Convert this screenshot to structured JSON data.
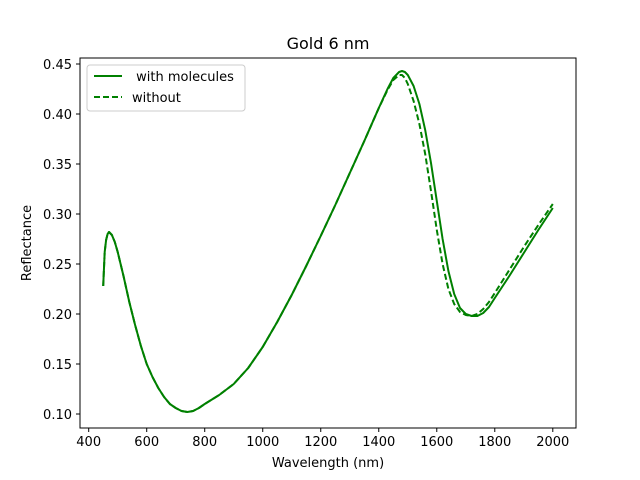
{
  "chart_data": {
    "type": "line",
    "title": "Gold 6 nm",
    "xlabel": "Wavelength (nm)",
    "ylabel": "Reflectance",
    "xlim": [
      370,
      2080
    ],
    "ylim": [
      0.086,
      0.456
    ],
    "xticks": [
      400,
      600,
      800,
      1000,
      1200,
      1400,
      1600,
      1800,
      2000
    ],
    "yticks": [
      0.1,
      0.15,
      0.2,
      0.25,
      0.3,
      0.35,
      0.4,
      0.45
    ],
    "grid": false,
    "legend_position": "top-left",
    "series": [
      {
        "name": " with molecules",
        "style": "solid",
        "color": "#008000",
        "x": [
          450,
          455,
          460,
          465,
          470,
          480,
          490,
          500,
          520,
          540,
          560,
          580,
          600,
          620,
          640,
          660,
          680,
          700,
          720,
          740,
          760,
          780,
          800,
          850,
          900,
          950,
          1000,
          1050,
          1100,
          1150,
          1200,
          1250,
          1300,
          1350,
          1400,
          1430,
          1450,
          1470,
          1480,
          1490,
          1500,
          1520,
          1540,
          1560,
          1580,
          1600,
          1620,
          1640,
          1660,
          1680,
          1700,
          1720,
          1740,
          1760,
          1780,
          1800,
          1850,
          1900,
          1950,
          2000
        ],
        "y": [
          0.228,
          0.262,
          0.274,
          0.28,
          0.282,
          0.279,
          0.272,
          0.262,
          0.238,
          0.212,
          0.189,
          0.168,
          0.15,
          0.137,
          0.126,
          0.117,
          0.11,
          0.106,
          0.103,
          0.102,
          0.103,
          0.106,
          0.11,
          0.119,
          0.13,
          0.146,
          0.167,
          0.192,
          0.219,
          0.248,
          0.278,
          0.309,
          0.341,
          0.373,
          0.406,
          0.425,
          0.436,
          0.442,
          0.443,
          0.442,
          0.439,
          0.428,
          0.41,
          0.384,
          0.351,
          0.313,
          0.275,
          0.243,
          0.22,
          0.206,
          0.2,
          0.198,
          0.198,
          0.201,
          0.207,
          0.216,
          0.238,
          0.261,
          0.284,
          0.306
        ]
      },
      {
        "name": "without",
        "style": "dashed",
        "color": "#008000",
        "x": [
          450,
          455,
          460,
          465,
          470,
          480,
          490,
          500,
          520,
          540,
          560,
          580,
          600,
          620,
          640,
          660,
          680,
          700,
          720,
          740,
          760,
          780,
          800,
          850,
          900,
          950,
          1000,
          1050,
          1100,
          1150,
          1200,
          1250,
          1300,
          1350,
          1400,
          1430,
          1450,
          1470,
          1480,
          1490,
          1500,
          1520,
          1540,
          1560,
          1580,
          1600,
          1620,
          1640,
          1660,
          1680,
          1700,
          1720,
          1740,
          1760,
          1780,
          1800,
          1850,
          1900,
          1950,
          2000
        ],
        "y": [
          0.228,
          0.262,
          0.274,
          0.28,
          0.282,
          0.279,
          0.272,
          0.262,
          0.238,
          0.212,
          0.189,
          0.168,
          0.15,
          0.137,
          0.126,
          0.117,
          0.11,
          0.106,
          0.103,
          0.102,
          0.103,
          0.106,
          0.11,
          0.119,
          0.13,
          0.146,
          0.167,
          0.192,
          0.219,
          0.248,
          0.278,
          0.309,
          0.341,
          0.373,
          0.406,
          0.424,
          0.434,
          0.439,
          0.439,
          0.436,
          0.43,
          0.413,
          0.39,
          0.36,
          0.323,
          0.284,
          0.25,
          0.225,
          0.21,
          0.202,
          0.199,
          0.198,
          0.2,
          0.205,
          0.212,
          0.221,
          0.244,
          0.267,
          0.289,
          0.31
        ]
      }
    ]
  }
}
